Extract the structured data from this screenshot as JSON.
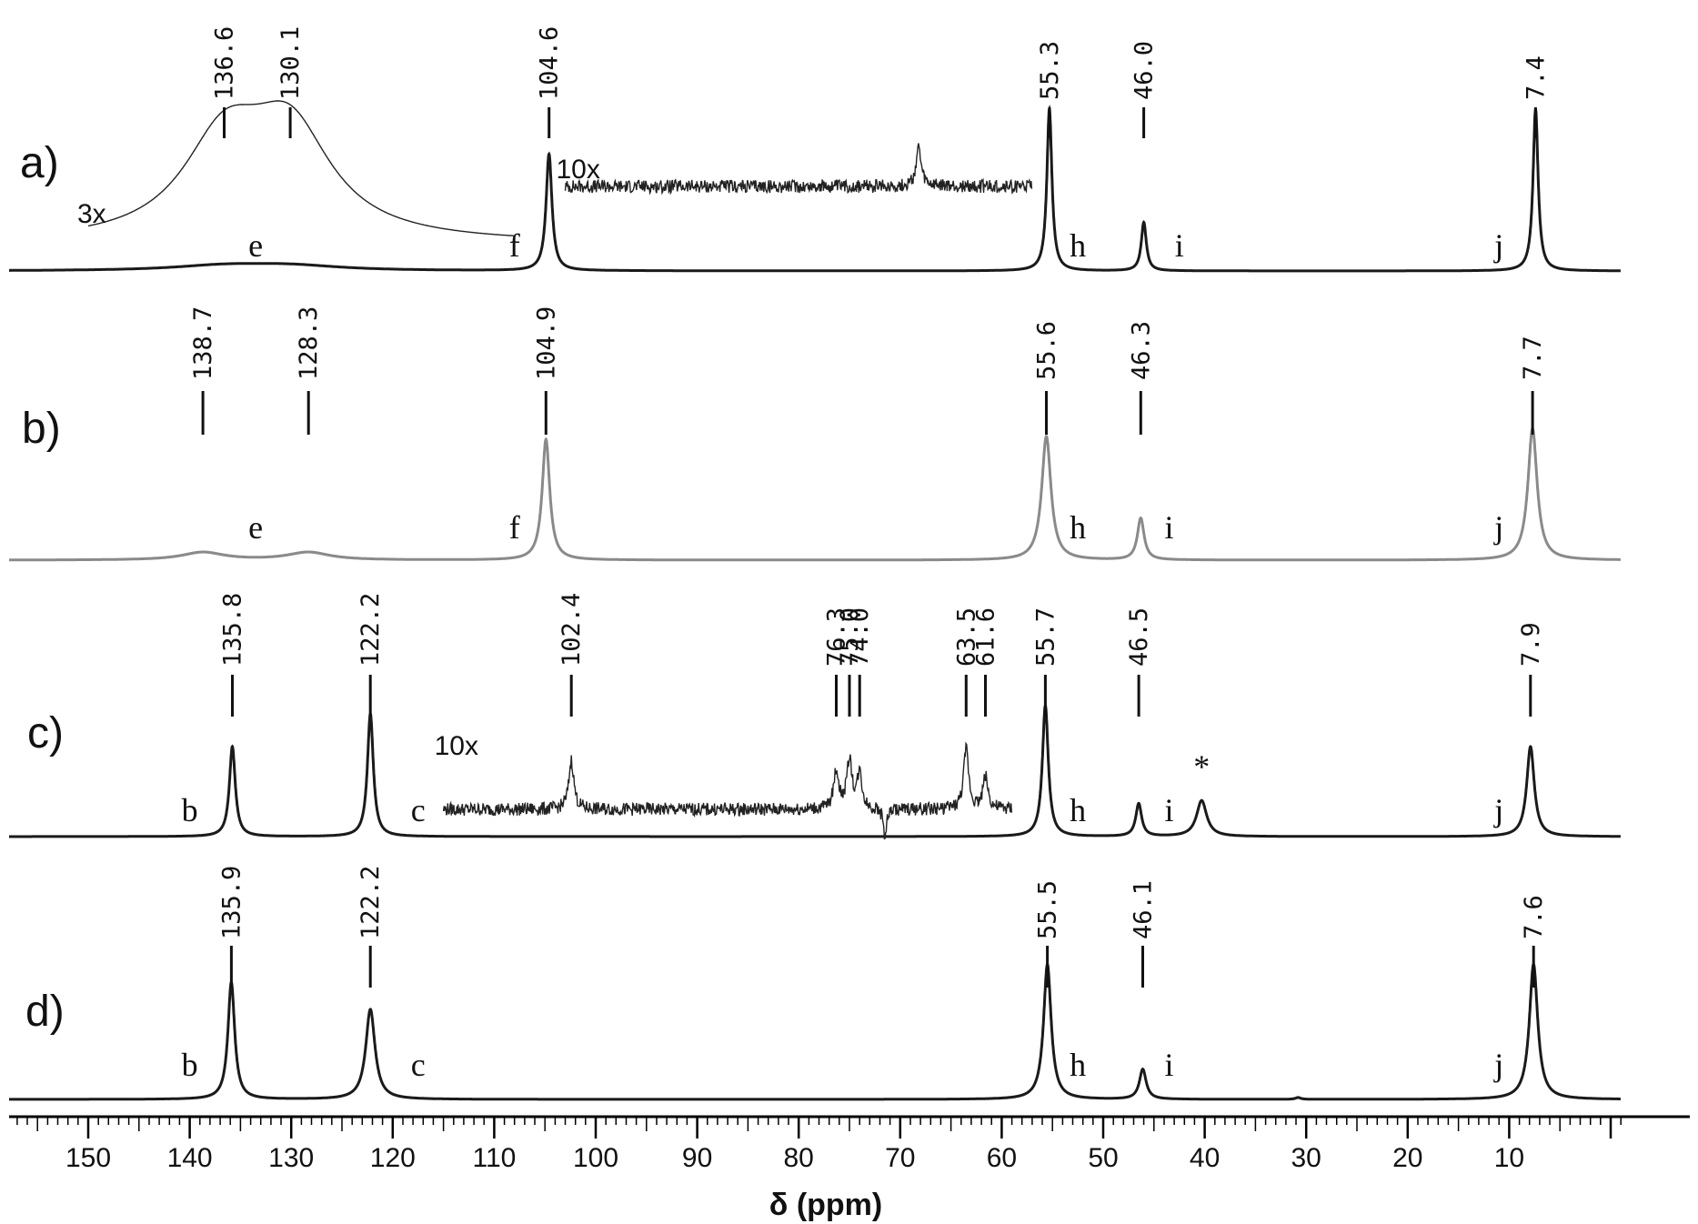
{
  "chart_data": {
    "type": "line",
    "title": "",
    "xlabel": "δ (ppm)",
    "ylabel": "",
    "xlim": [
      160,
      0
    ],
    "x_reversed": true,
    "x_ticks": [
      150,
      140,
      130,
      120,
      110,
      100,
      90,
      80,
      70,
      60,
      50,
      40,
      30,
      20,
      10
    ],
    "grid": false,
    "legend": "none",
    "colors": {
      "a": "#1a1a1a",
      "b": "#8a8a8a",
      "c": "#1a1a1a",
      "d": "#1a1a1a",
      "axis": "#000000"
    },
    "spectra": [
      {
        "panel": "a)",
        "peak_labels": [
          "136.6",
          "130.1",
          "104.6",
          "55.3",
          "46.0",
          "7.4"
        ],
        "peaks": [
          {
            "ppm": 104.6,
            "height": 0.72,
            "width": 0.35
          },
          {
            "ppm": 55.3,
            "height": 1.0,
            "width": 0.3
          },
          {
            "ppm": 46.0,
            "height": 0.3,
            "width": 0.3
          },
          {
            "ppm": 7.4,
            "height": 1.0,
            "width": 0.3
          },
          {
            "ppm": 136.6,
            "height": 0.03,
            "width": 6
          },
          {
            "ppm": 130.1,
            "height": 0.03,
            "width": 6
          }
        ],
        "assignments": [
          {
            "text": "e",
            "ppm": 133.5
          },
          {
            "text": "f",
            "ppm": 108.0
          },
          {
            "text": "h",
            "ppm": 52.5
          },
          {
            "text": "i",
            "ppm": 42.5
          },
          {
            "text": "j",
            "ppm": 11.0
          }
        ],
        "insets": [
          {
            "label": "3x",
            "from": 150,
            "to": 108,
            "peaks": [
              {
                "ppm": 136.6,
                "height": 0.55,
                "width": 5
              },
              {
                "ppm": 130.1,
                "height": 0.6,
                "width": 5
              }
            ]
          },
          {
            "label": "10x",
            "from": 103,
            "to": 57,
            "noise": true,
            "peaks": [
              {
                "ppm": 68.2,
                "height": 0.35,
                "width": 0.3
              }
            ]
          }
        ]
      },
      {
        "panel": "b)",
        "peak_labels": [
          "138.7",
          "128.3",
          "104.9",
          "55.6",
          "46.3",
          "7.7"
        ],
        "peaks": [
          {
            "ppm": 104.9,
            "height": 0.78,
            "width": 0.45
          },
          {
            "ppm": 55.6,
            "height": 0.8,
            "width": 0.55
          },
          {
            "ppm": 46.3,
            "height": 0.27,
            "width": 0.4
          },
          {
            "ppm": 7.7,
            "height": 0.85,
            "width": 0.55
          },
          {
            "ppm": 138.7,
            "height": 0.05,
            "width": 2.5
          },
          {
            "ppm": 128.3,
            "height": 0.05,
            "width": 2.5
          }
        ],
        "assignments": [
          {
            "text": "e",
            "ppm": 133.5
          },
          {
            "text": "f",
            "ppm": 108.0
          },
          {
            "text": "h",
            "ppm": 52.5
          },
          {
            "text": "i",
            "ppm": 43.5
          },
          {
            "text": "j",
            "ppm": 11.0
          }
        ]
      },
      {
        "panel": "c)",
        "peak_labels": [
          "135.8",
          "122.2",
          "102.4",
          "76.3",
          "75.0",
          "74.0",
          "63.5",
          "61.6",
          "55.7",
          "46.5",
          "7.9"
        ],
        "peaks": [
          {
            "ppm": 135.8,
            "height": 0.55,
            "width": 0.35
          },
          {
            "ppm": 122.2,
            "height": 0.75,
            "width": 0.35
          },
          {
            "ppm": 55.7,
            "height": 0.8,
            "width": 0.35
          },
          {
            "ppm": 46.5,
            "height": 0.2,
            "width": 0.35
          },
          {
            "ppm": 40.3,
            "height": 0.22,
            "width": 0.6
          },
          {
            "ppm": 7.9,
            "height": 0.55,
            "width": 0.45
          }
        ],
        "assignments": [
          {
            "text": "b",
            "ppm": 140.0
          },
          {
            "text": "c",
            "ppm": 117.5
          },
          {
            "text": "h",
            "ppm": 52.5
          },
          {
            "text": "i",
            "ppm": 43.5
          },
          {
            "text": "*",
            "ppm": 40.3
          },
          {
            "text": "j",
            "ppm": 11.0
          }
        ],
        "insets": [
          {
            "label": "10x",
            "from": 115,
            "to": 59,
            "noise": true,
            "peaks": [
              {
                "ppm": 102.4,
                "height": 0.45,
                "width": 0.3
              },
              {
                "ppm": 76.3,
                "height": 0.35,
                "width": 0.3
              },
              {
                "ppm": 75.0,
                "height": 0.45,
                "width": 0.3
              },
              {
                "ppm": 74.0,
                "height": 0.32,
                "width": 0.3
              },
              {
                "ppm": 63.5,
                "height": 0.55,
                "width": 0.3
              },
              {
                "ppm": 61.6,
                "height": 0.3,
                "width": 0.3
              },
              {
                "ppm": 71.5,
                "height": -0.25,
                "width": 0.2
              }
            ]
          }
        ]
      },
      {
        "panel": "d)",
        "peak_labels": [
          "135.9",
          "122.2",
          "55.5",
          "46.1",
          "7.6"
        ],
        "peaks": [
          {
            "ppm": 135.9,
            "height": 0.78,
            "width": 0.4
          },
          {
            "ppm": 122.2,
            "height": 0.6,
            "width": 0.55
          },
          {
            "ppm": 55.5,
            "height": 0.9,
            "width": 0.45
          },
          {
            "ppm": 46.1,
            "height": 0.2,
            "width": 0.4
          },
          {
            "ppm": 30.8,
            "height": 0.012,
            "width": 0.3
          },
          {
            "ppm": 7.6,
            "height": 0.9,
            "width": 0.5
          }
        ],
        "assignments": [
          {
            "text": "b",
            "ppm": 140.0
          },
          {
            "text": "c",
            "ppm": 117.5
          },
          {
            "text": "h",
            "ppm": 52.5
          },
          {
            "text": "i",
            "ppm": 43.5
          },
          {
            "text": "j",
            "ppm": 11.0
          }
        ]
      }
    ]
  }
}
